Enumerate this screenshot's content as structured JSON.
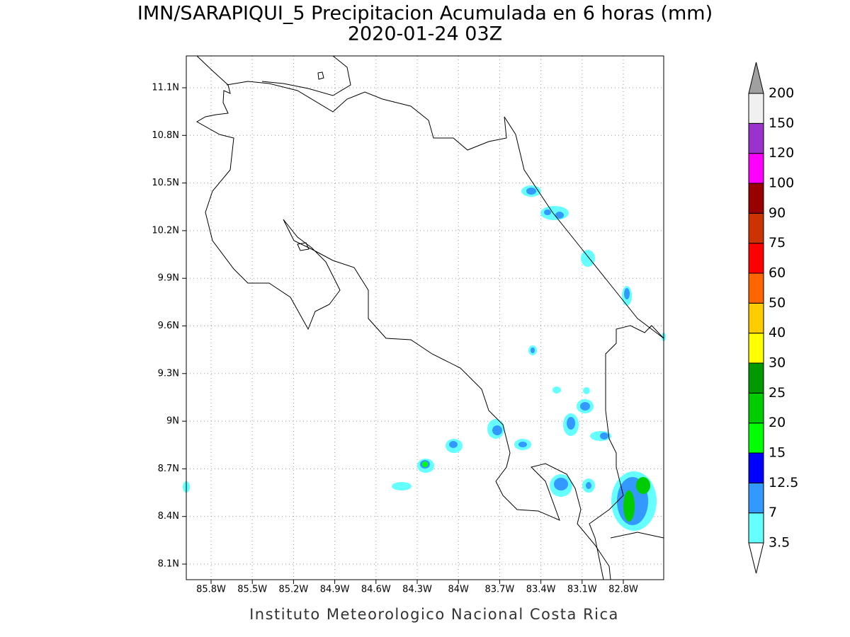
{
  "title": "IMN/SARAPIQUI_5 Precipitacion Acumulada en 6 horas (mm)",
  "subtitle": "2020-01-24 03Z",
  "footer": "Instituto Meteorologico Nacional Costa Rica",
  "map": {
    "lon_labels": [
      "85.8W",
      "85.5W",
      "85.2W",
      "84.9W",
      "84.6W",
      "84.3W",
      "84W",
      "83.7W",
      "83.4W",
      "83.1W",
      "82.8W"
    ],
    "lat_labels": [
      "11.1N",
      "10.8N",
      "10.5N",
      "10.2N",
      "9.9N",
      "9.6N",
      "9.3N",
      "9N",
      "8.7N",
      "8.4N",
      "8.1N"
    ]
  },
  "colorbar": {
    "below_color": "#ffffff",
    "above_color": "#a0a0a0",
    "levels": [
      {
        "label": "3.5",
        "color": "#66ffff"
      },
      {
        "label": "7",
        "color": "#3399ff"
      },
      {
        "label": "12.5",
        "color": "#0000ff"
      },
      {
        "label": "15",
        "color": "#00ff00"
      },
      {
        "label": "20",
        "color": "#00cc00"
      },
      {
        "label": "25",
        "color": "#009900"
      },
      {
        "label": "30",
        "color": "#ffff00"
      },
      {
        "label": "40",
        "color": "#ffcc00"
      },
      {
        "label": "50",
        "color": "#ff6600"
      },
      {
        "label": "60",
        "color": "#ff0000"
      },
      {
        "label": "75",
        "color": "#cc3300"
      },
      {
        "label": "90",
        "color": "#990000"
      },
      {
        "label": "100",
        "color": "#ff00ff"
      },
      {
        "label": "120",
        "color": "#9933cc"
      },
      {
        "label": "150",
        "color": "#f0f0f0"
      },
      {
        "label": "200",
        "color": null
      }
    ]
  }
}
